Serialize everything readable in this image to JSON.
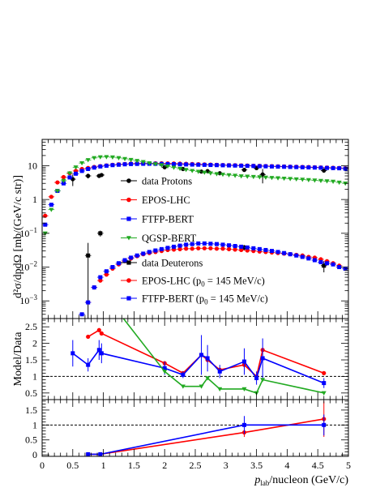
{
  "chart_data": [
    {
      "type": "scatter",
      "panel": "spectra",
      "ylabel": "d²σ/dpdΩ [mb/(GeV/c str)]",
      "xlim": [
        0,
        5
      ],
      "ylim": [
        0.0003,
        60
      ],
      "yscale": "log",
      "y_ticks": [
        {
          "value": 0.001,
          "base": "10",
          "exp": "−3"
        },
        {
          "value": 0.01,
          "base": "10",
          "exp": "−2"
        },
        {
          "value": 0.1,
          "base": "10",
          "exp": "−1"
        },
        {
          "value": 1,
          "base": "1",
          "exp": ""
        },
        {
          "value": 10,
          "base": "10",
          "exp": ""
        }
      ],
      "legend_top": "center",
      "legend_bottom": "bottom-center",
      "series": [
        {
          "key": "protons_data",
          "name": "data Protons",
          "color": "#000000",
          "marker": "circle",
          "x": [
            0.5,
            0.75,
            0.93,
            0.97,
            2.0,
            2.3,
            2.6,
            2.7,
            2.9,
            3.3,
            3.5,
            3.6,
            4.6
          ],
          "y": [
            4.0,
            5.0,
            5.0,
            5.3,
            9.0,
            8.0,
            6.7,
            6.9,
            6.0,
            7.5,
            8.5,
            5.5,
            7.2
          ],
          "err": [
            1.5,
            0.8,
            0.6,
            0.6,
            1.0,
            0.8,
            0.8,
            0.8,
            0.8,
            0.9,
            0.9,
            2.5,
            1.0
          ]
        },
        {
          "key": "epos_protons",
          "name": "EPOS-LHC",
          "color": "#ff0000",
          "marker": "circle",
          "x": [
            0.05,
            0.15,
            0.25,
            0.35,
            0.45,
            0.55,
            0.65,
            0.75,
            0.85,
            0.95,
            1.05,
            1.15,
            1.25,
            1.35,
            1.45,
            1.55,
            1.65,
            1.75,
            1.85,
            1.95,
            2.05,
            2.15,
            2.25,
            2.35,
            2.45,
            2.55,
            2.65,
            2.75,
            2.85,
            2.95,
            3.05,
            3.15,
            3.25,
            3.35,
            3.45,
            3.55,
            3.65,
            3.75,
            3.85,
            3.95,
            4.05,
            4.15,
            4.25,
            4.35,
            4.45,
            4.55,
            4.65,
            4.75,
            4.85,
            4.95
          ],
          "y": [
            0.33,
            1.2,
            3.2,
            4.6,
            6.0,
            7.0,
            8.0,
            8.6,
            9.2,
            9.7,
            10.2,
            10.6,
            11.0,
            11.2,
            11.5,
            11.7,
            11.8,
            11.8,
            11.8,
            11.8,
            11.7,
            11.6,
            11.5,
            11.4,
            11.2,
            11.1,
            10.9,
            10.8,
            10.6,
            10.5,
            10.4,
            10.3,
            10.2,
            10.1,
            10.0,
            9.9,
            9.8,
            9.7,
            9.6,
            9.5,
            9.4,
            9.3,
            9.2,
            9.1,
            9.0,
            8.9,
            8.8,
            8.7,
            8.6,
            8.4
          ]
        },
        {
          "key": "ftfp_protons",
          "name": "FTFP-BERT",
          "color": "#0000ff",
          "marker": "square",
          "x": [
            0.05,
            0.15,
            0.25,
            0.35,
            0.45,
            0.55,
            0.65,
            0.75,
            0.85,
            0.95,
            1.05,
            1.15,
            1.25,
            1.35,
            1.45,
            1.55,
            1.65,
            1.75,
            1.85,
            1.95,
            2.05,
            2.15,
            2.25,
            2.35,
            2.45,
            2.55,
            2.65,
            2.75,
            2.85,
            2.95,
            3.05,
            3.15,
            3.25,
            3.35,
            3.45,
            3.55,
            3.65,
            3.75,
            3.85,
            3.95,
            4.05,
            4.15,
            4.25,
            4.35,
            4.45,
            4.55,
            4.65,
            4.75,
            4.85,
            4.95
          ],
          "y": [
            0.18,
            0.7,
            1.8,
            3.0,
            4.5,
            5.8,
            7.0,
            8.0,
            8.8,
            9.5,
            10.0,
            10.4,
            10.7,
            11.0,
            11.2,
            11.3,
            11.4,
            11.4,
            11.4,
            11.3,
            11.2,
            11.1,
            11.0,
            10.9,
            10.8,
            10.7,
            10.6,
            10.5,
            10.4,
            10.3,
            10.2,
            10.1,
            10.0,
            9.9,
            9.8,
            9.7,
            9.6,
            9.5,
            9.4,
            9.3,
            9.2,
            9.1,
            9.0,
            8.9,
            8.8,
            8.7,
            8.6,
            8.5,
            8.4,
            8.2
          ]
        },
        {
          "key": "qgsp_protons",
          "name": "QGSP-BERT",
          "color": "#22aa22",
          "marker": "triangle-down",
          "x": [
            0.05,
            0.15,
            0.25,
            0.35,
            0.45,
            0.55,
            0.65,
            0.75,
            0.85,
            0.95,
            1.05,
            1.15,
            1.25,
            1.35,
            1.45,
            1.55,
            1.65,
            1.75,
            1.85,
            1.95,
            2.05,
            2.15,
            2.25,
            2.35,
            2.45,
            2.55,
            2.65,
            2.75,
            2.85,
            2.95,
            3.05,
            3.15,
            3.25,
            3.35,
            3.45,
            3.55,
            3.65,
            3.75,
            3.85,
            3.95,
            4.05,
            4.15,
            4.25,
            4.35,
            4.45,
            4.55,
            4.65,
            4.75,
            4.85,
            4.95
          ],
          "y": [
            0.1,
            0.5,
            1.8,
            3.6,
            6.0,
            9.0,
            12.0,
            14.8,
            17.0,
            18.0,
            18.2,
            17.8,
            17.0,
            16.0,
            15.0,
            14.0,
            13.0,
            12.0,
            11.2,
            10.4,
            9.6,
            8.8,
            8.2,
            7.6,
            7.1,
            6.7,
            6.3,
            6.0,
            5.7,
            5.5,
            5.3,
            5.1,
            4.9,
            4.8,
            4.7,
            4.6,
            4.5,
            4.4,
            4.3,
            4.2,
            4.1,
            4.0,
            3.9,
            3.8,
            3.7,
            3.6,
            3.5,
            3.4,
            3.2,
            3.0
          ]
        },
        {
          "key": "deuterons_data",
          "name": "data Deuterons",
          "color": "#000000",
          "marker": "square",
          "x": [
            0.75,
            0.95,
            3.3,
            4.6
          ],
          "y": [
            0.022,
            0.1,
            0.038,
            0.011
          ],
          "err": [
            0.03,
            0.02,
            0.007,
            0.004
          ]
        },
        {
          "key": "epos_deuterons",
          "name": "EPOS-LHC (p",
          "name_sub": "0",
          "name_suffix": " = 145 MeV/c)",
          "color": "#ff0000",
          "marker": "circle",
          "x": [
            0.75,
            0.85,
            0.95,
            1.05,
            1.15,
            1.25,
            1.35,
            1.45,
            1.55,
            1.65,
            1.75,
            1.85,
            1.95,
            2.05,
            2.15,
            2.25,
            2.35,
            2.45,
            2.55,
            2.65,
            2.75,
            2.85,
            2.95,
            3.05,
            3.15,
            3.25,
            3.35,
            3.45,
            3.55,
            3.65,
            3.75,
            3.85,
            3.95,
            4.05,
            4.15,
            4.25,
            4.35,
            4.45,
            4.55,
            4.65,
            4.75,
            4.85,
            4.95
          ],
          "y": [
            0.0009,
            0.0025,
            0.004,
            0.006,
            0.009,
            0.012,
            0.015,
            0.018,
            0.021,
            0.024,
            0.026,
            0.028,
            0.03,
            0.032,
            0.033,
            0.034,
            0.035,
            0.035,
            0.036,
            0.036,
            0.036,
            0.035,
            0.035,
            0.034,
            0.033,
            0.032,
            0.031,
            0.03,
            0.029,
            0.028,
            0.027,
            0.026,
            0.025,
            0.024,
            0.023,
            0.022,
            0.02,
            0.019,
            0.017,
            0.015,
            0.013,
            0.011,
            0.009
          ]
        },
        {
          "key": "ftfp_deuterons",
          "name": "FTFP-BERT (p",
          "name_sub": "0",
          "name_suffix": " = 145 MeV/c)",
          "color": "#0000ff",
          "marker": "square",
          "x": [
            0.65,
            0.75,
            0.85,
            0.95,
            1.05,
            1.15,
            1.25,
            1.35,
            1.45,
            1.55,
            1.65,
            1.75,
            1.85,
            1.95,
            2.05,
            2.15,
            2.25,
            2.35,
            2.45,
            2.55,
            2.65,
            2.75,
            2.85,
            2.95,
            3.05,
            3.15,
            3.25,
            3.35,
            3.45,
            3.55,
            3.65,
            3.75,
            3.85,
            3.95,
            4.05,
            4.15,
            4.25,
            4.35,
            4.45,
            4.55,
            4.65,
            4.75,
            4.85,
            4.95
          ],
          "y": [
            0.0004,
            0.0009,
            0.0025,
            0.005,
            0.0075,
            0.01,
            0.013,
            0.016,
            0.019,
            0.022,
            0.025,
            0.028,
            0.031,
            0.034,
            0.037,
            0.04,
            0.043,
            0.046,
            0.048,
            0.05,
            0.05,
            0.049,
            0.048,
            0.046,
            0.044,
            0.042,
            0.04,
            0.038,
            0.036,
            0.034,
            0.032,
            0.03,
            0.028,
            0.026,
            0.024,
            0.022,
            0.02,
            0.018,
            0.016,
            0.014,
            0.013,
            0.012,
            0.01,
            0.009
          ]
        }
      ]
    },
    {
      "type": "line",
      "panel": "ratio-protons",
      "ylabel": "Model/Data",
      "xlim": [
        0,
        5
      ],
      "ylim": [
        0.3,
        2.75
      ],
      "y_ticks": [
        "0.5",
        "1",
        "1.5",
        "2",
        "2.5"
      ],
      "reference_line": 1,
      "series": [
        {
          "key": "ratio_epos_p",
          "color": "#ff0000",
          "marker": "circle",
          "x": [
            0.75,
            0.93,
            0.97,
            2.0,
            2.3,
            2.6,
            2.7,
            2.9,
            3.3,
            3.5,
            3.6,
            4.6
          ],
          "y": [
            2.2,
            2.4,
            2.3,
            1.4,
            1.1,
            1.65,
            1.5,
            1.2,
            1.35,
            1.0,
            1.8,
            1.1
          ]
        },
        {
          "key": "ratio_ftfp_p",
          "color": "#0000ff",
          "marker": "square",
          "x": [
            0.5,
            0.75,
            0.93,
            0.97,
            2.0,
            2.3,
            2.6,
            2.7,
            2.9,
            3.3,
            3.5,
            3.6,
            4.6
          ],
          "y": [
            1.7,
            1.35,
            1.8,
            1.7,
            1.25,
            1.05,
            1.65,
            1.55,
            1.15,
            1.45,
            0.95,
            1.55,
            0.8
          ],
          "err": [
            0.4,
            0.2,
            0.3,
            0.3,
            0.2,
            0.1,
            0.6,
            0.4,
            0.2,
            0.4,
            0.2,
            0.6,
            0.15
          ]
        },
        {
          "key": "ratio_qgsp_p",
          "color": "#22aa22",
          "marker": "triangle-down",
          "x": [
            0.97,
            2.0,
            2.3,
            2.6,
            2.7,
            2.9,
            3.3,
            3.5,
            3.6,
            4.6
          ],
          "y": [
            3.6,
            1.15,
            0.7,
            0.7,
            0.95,
            0.62,
            0.62,
            0.5,
            0.9,
            0.5
          ]
        }
      ]
    },
    {
      "type": "line",
      "panel": "ratio-deuterons",
      "xlabel": "p",
      "xlabel_sub": "lab",
      "xlabel_suffix": "/nucleon (GeV/c)",
      "xlim": [
        0,
        5
      ],
      "ylim": [
        -0.05,
        1.85
      ],
      "x_ticks": [
        "0",
        "0.5",
        "1",
        "1.5",
        "2",
        "2.5",
        "3",
        "3.5",
        "4",
        "4.5",
        "5"
      ],
      "y_ticks": [
        "0",
        "0.5",
        "1",
        "1.5"
      ],
      "reference_line": 1,
      "series": [
        {
          "key": "ratio_epos_d",
          "color": "#ff0000",
          "marker": "circle",
          "x": [
            0.75,
            0.95,
            3.3,
            4.6
          ],
          "y": [
            0.02,
            0.02,
            0.75,
            1.2
          ],
          "err": [
            0.0,
            0.0,
            0.15,
            0.6
          ]
        },
        {
          "key": "ratio_ftfp_d",
          "color": "#0000ff",
          "marker": "square",
          "x": [
            0.75,
            0.95,
            3.3,
            4.6
          ],
          "y": [
            0.02,
            0.02,
            1.0,
            1.0
          ],
          "err": [
            0.0,
            0.0,
            0.3,
            0.35
          ]
        }
      ]
    }
  ]
}
